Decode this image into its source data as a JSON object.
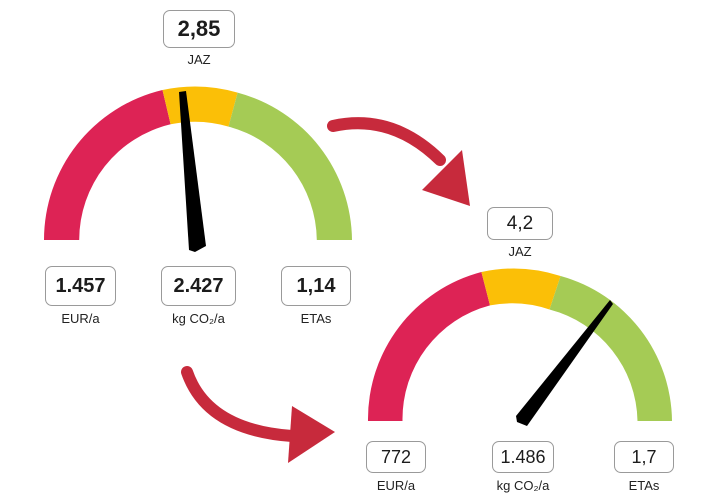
{
  "colors": {
    "red": "#dd2355",
    "yellow": "#fbbf07",
    "green": "#a5cb55",
    "arrow": "#c72a3c",
    "needle": "#000000"
  },
  "gauge_before": {
    "score": "2,85",
    "score_label": "JAZ",
    "cost_value": "1.457",
    "cost_unit": "EUR/a",
    "co2_value": "2.427",
    "co2_unit": "kg CO₂/a",
    "etas_value": "1,14",
    "etas_unit": "ETAs"
  },
  "gauge_after": {
    "score": "4,2",
    "score_label": "JAZ",
    "cost_value": "772",
    "cost_unit": "EUR/a",
    "co2_value": "1.486",
    "co2_unit": "kg CO₂/a",
    "etas_value": "1,7",
    "etas_unit": "ETAs"
  }
}
